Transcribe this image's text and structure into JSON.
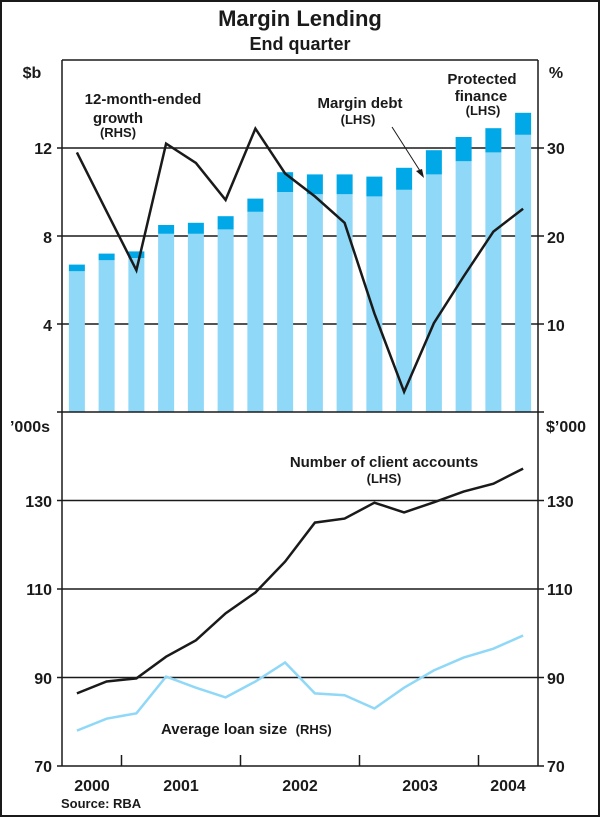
{
  "chart_data": [
    {
      "type": "bar",
      "panel": "top",
      "title": "Margin Lending",
      "subtitle": "End quarter",
      "categories": [
        "Sep 2000",
        "Dec 2000",
        "Mar 2001",
        "Jun 2001",
        "Sep 2001",
        "Dec 2001",
        "Mar 2002",
        "Jun 2002",
        "Sep 2002",
        "Dec 2002",
        "Mar 2003",
        "Jun 2003",
        "Sep 2003",
        "Dec 2003",
        "Mar 2004",
        "Jun 2004"
      ],
      "stacked": true,
      "series": [
        {
          "name": "Margin debt",
          "axis": "left",
          "color": "#8fd8f7",
          "values": [
            6.4,
            6.9,
            7.0,
            8.1,
            8.1,
            8.3,
            9.1,
            10.0,
            9.9,
            9.9,
            9.8,
            10.1,
            10.8,
            11.4,
            11.8,
            12.6
          ]
        },
        {
          "name": "Protected finance",
          "axis": "left",
          "color": "#00a8e8",
          "values": [
            0.3,
            0.3,
            0.3,
            0.4,
            0.5,
            0.6,
            0.6,
            0.9,
            0.9,
            0.9,
            0.9,
            1.0,
            1.1,
            1.1,
            1.1,
            1.0
          ]
        },
        {
          "name": "12-month-ended growth",
          "axis": "right",
          "type": "line",
          "color": "#1a1a1a",
          "values": [
            29.5,
            22.8,
            16.1,
            30.5,
            28.3,
            24.1,
            32.2,
            27.1,
            24.5,
            21.5,
            11.2,
            2.3,
            10.1,
            15.4,
            20.5,
            23.1
          ]
        }
      ],
      "ylabel_left": "$b",
      "ylabel_right": "%",
      "ylim_left": [
        0,
        16
      ],
      "ylim_right": [
        0,
        40
      ],
      "yticks_left": [
        "4",
        "8",
        "12"
      ],
      "yticks_right": [
        "10",
        "20",
        "30"
      ],
      "grid": true,
      "annotations": {
        "growth": {
          "line1": "12-month-ended",
          "line2": "growth",
          "line3": "(RHS)"
        },
        "margin_debt": {
          "line1": "Margin debt",
          "line2": "(LHS)"
        },
        "protected": {
          "line1": "Protected",
          "line2": "finance",
          "line3": "(LHS)"
        }
      }
    },
    {
      "type": "line",
      "panel": "bottom",
      "categories": [
        "Sep 2000",
        "Dec 2000",
        "Mar 2001",
        "Jun 2001",
        "Sep 2001",
        "Dec 2001",
        "Mar 2002",
        "Jun 2002",
        "Sep 2002",
        "Dec 2002",
        "Mar 2003",
        "Jun 2003",
        "Sep 2003",
        "Dec 2003",
        "Mar 2004",
        "Jun 2004"
      ],
      "series": [
        {
          "name": "Number of client accounts",
          "axis": "left",
          "color": "#1a1a1a",
          "values": [
            86.4,
            89.1,
            89.8,
            94.7,
            98.4,
            104.5,
            109.2,
            116.2,
            125.0,
            125.9,
            129.5,
            127.3,
            129.6,
            132.0,
            133.8,
            137.2
          ]
        },
        {
          "name": "Average loan size",
          "axis": "right",
          "color": "#8fd8f7",
          "values": [
            78.0,
            80.7,
            81.9,
            90.2,
            87.7,
            85.5,
            89.1,
            93.4,
            86.4,
            86.0,
            83.0,
            87.7,
            91.6,
            94.5,
            96.5,
            99.5
          ]
        }
      ],
      "ylabel_left": "’000s",
      "ylabel_right": "$’000",
      "ylim_left": [
        70,
        150
      ],
      "ylim_right": [
        70,
        150
      ],
      "yticks_left": [
        "70",
        "90",
        "110",
        "130"
      ],
      "yticks_right": [
        "70",
        "90",
        "110",
        "130"
      ],
      "grid": true,
      "annotations": {
        "accounts": {
          "line1": "Number of client accounts",
          "line2": "(LHS)"
        },
        "loan": {
          "main": "Average loan size",
          "suffix": "(RHS)"
        }
      },
      "xtick_labels": [
        "2000",
        "2001",
        "2002",
        "2003",
        "2004"
      ],
      "source": "Source: RBA"
    }
  ]
}
